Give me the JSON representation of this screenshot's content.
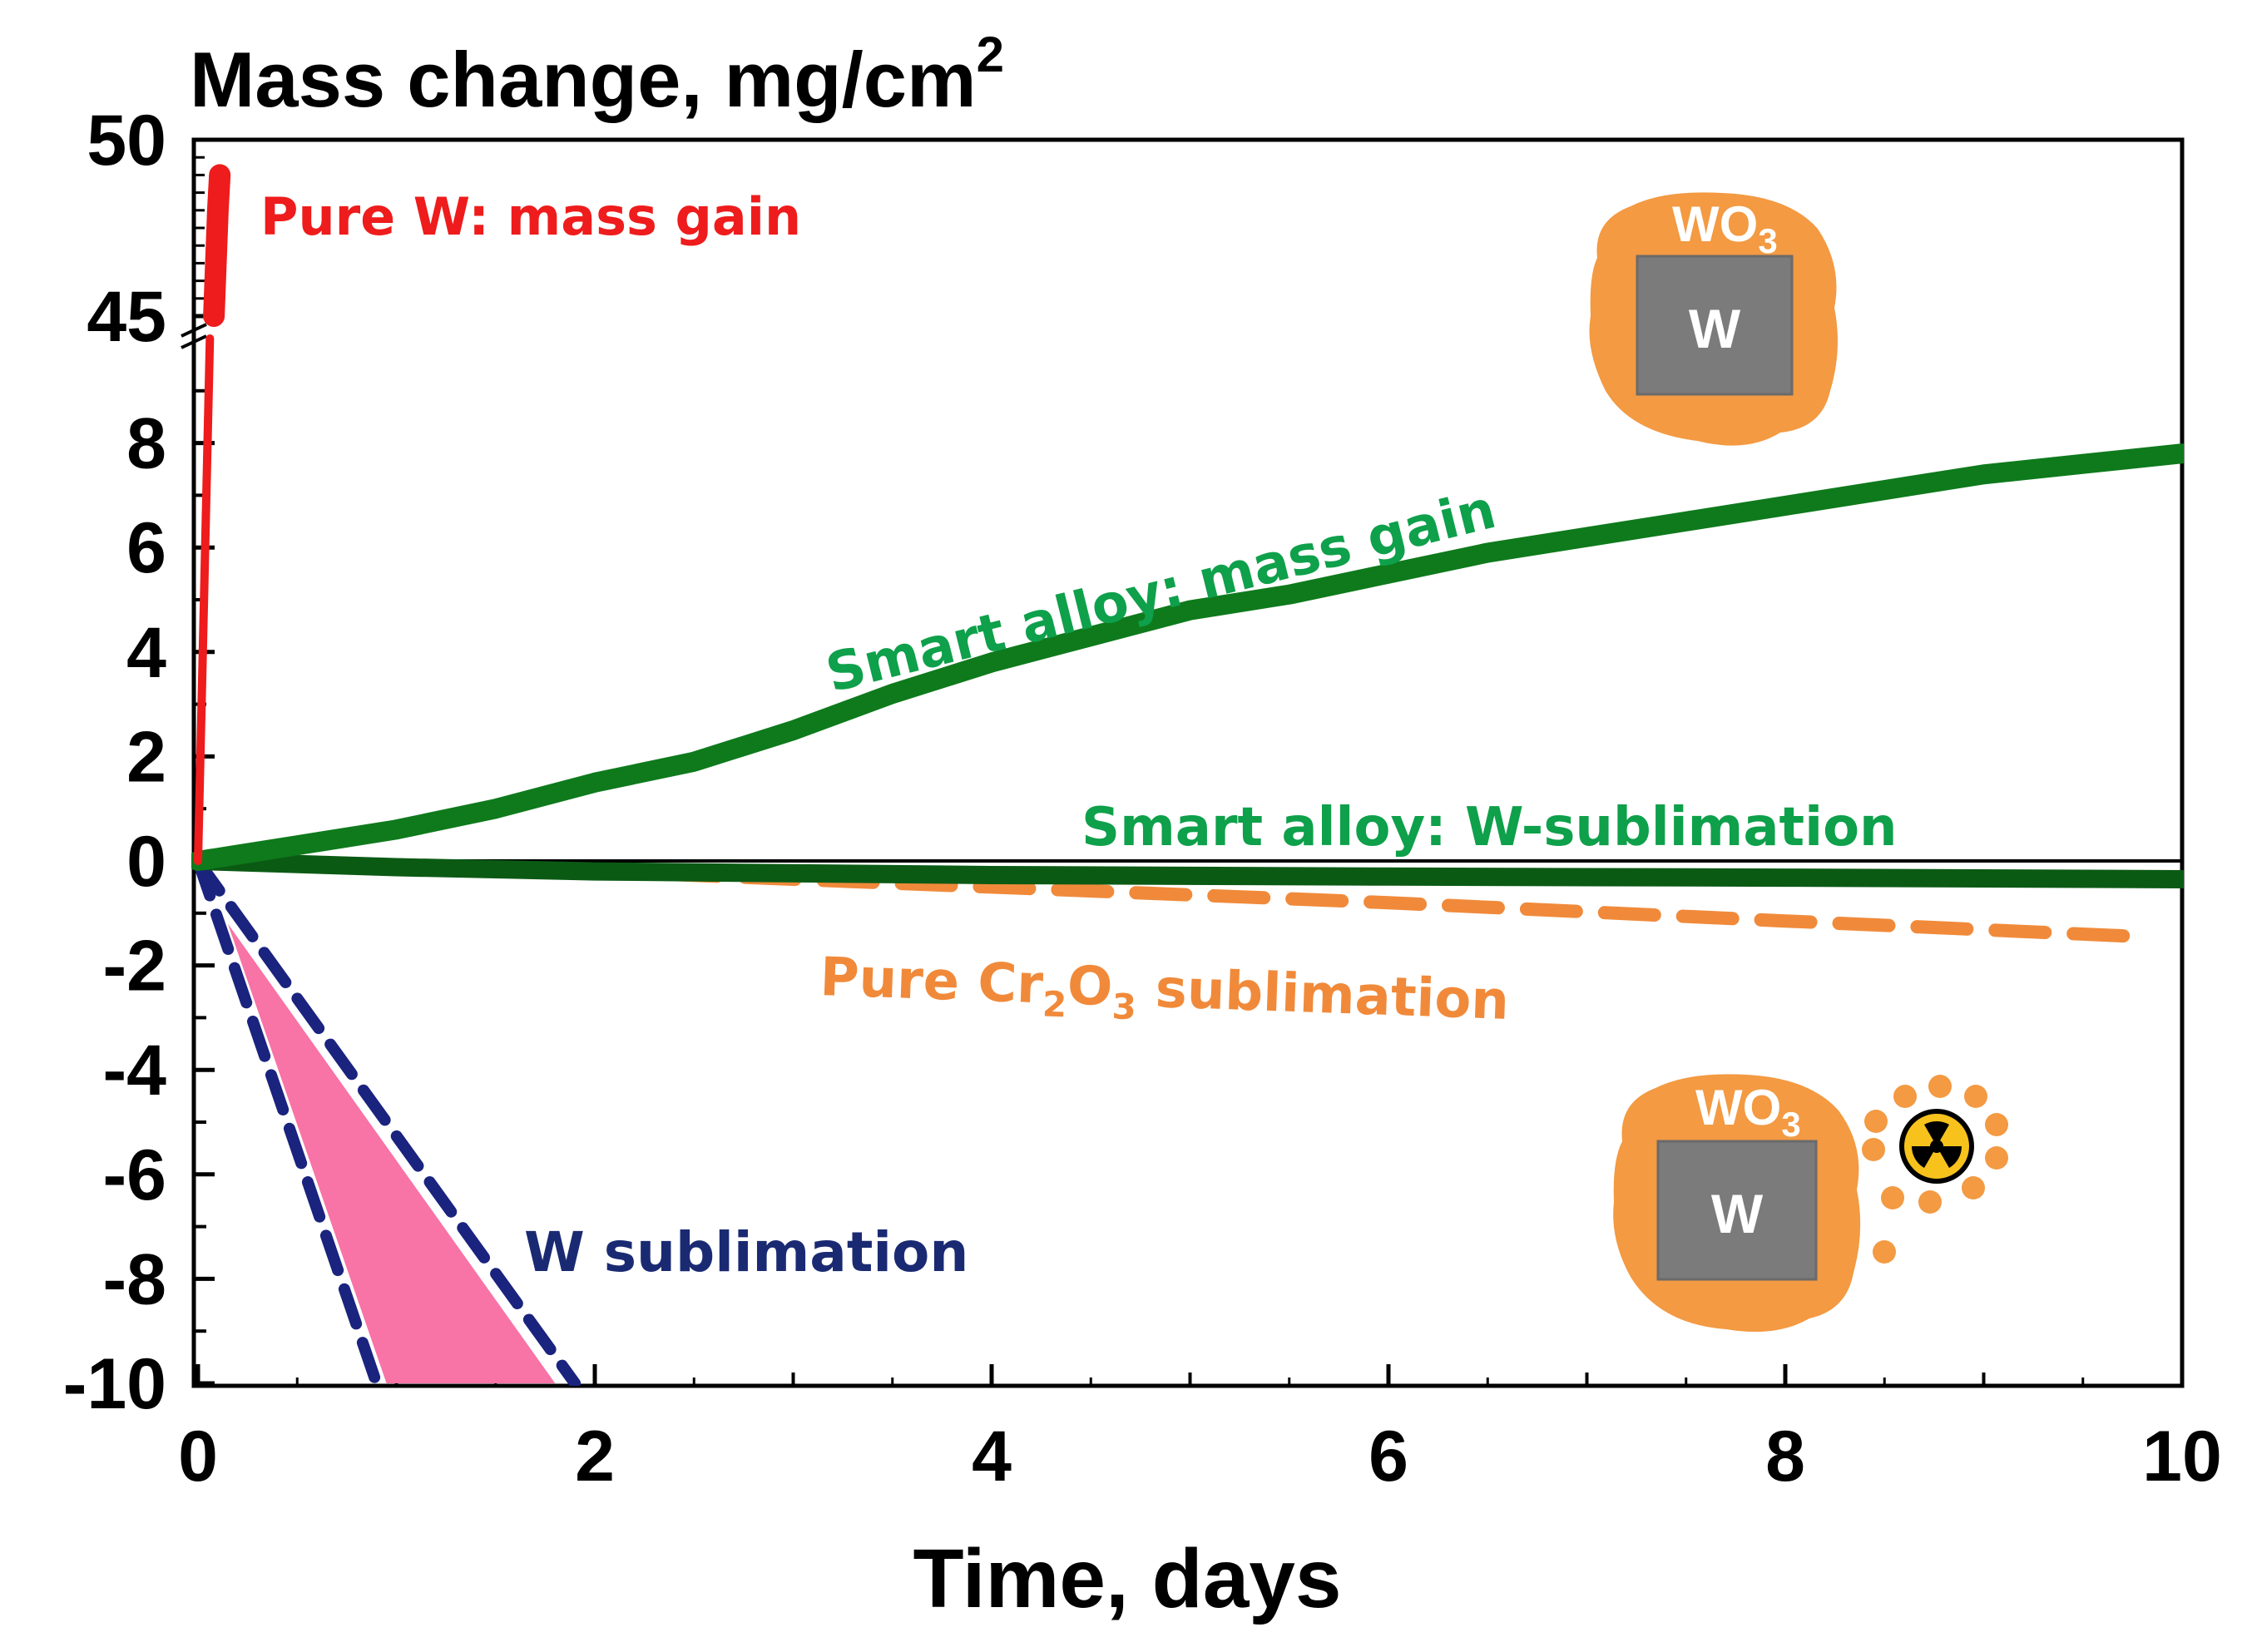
{
  "colors": {
    "pure_w": "#ee1c1c",
    "smart_gain": "#0e7a1c",
    "smart_sub": "#0b5a14",
    "cr2o3": "#f08a3a",
    "w_sub": "#1a237e",
    "w_sub_fill": "#f873a6",
    "label_green": "#0ea04a",
    "label_orange": "#f08a3a",
    "label_blue": "#1a2a72",
    "label_red": "#ee1c1c",
    "inset_orange": "#f39a42",
    "inset_gray": "#7b7b7b",
    "axis": "#000000"
  },
  "chart_data": {
    "type": "line",
    "title": "Mass change, mg/cm",
    "title_sup": "2",
    "xlabel": "Time, days",
    "ylabel": "Mass change, mg/cm²",
    "xlim": [
      0,
      10
    ],
    "ylim_lower": [
      -10,
      10
    ],
    "ylim_upper": [
      45,
      50
    ],
    "x_ticks": [
      "0",
      "2",
      "4",
      "6",
      "8",
      "10"
    ],
    "x_tick_values": [
      0,
      2,
      4,
      6,
      8,
      10
    ],
    "y_ticks_lower": [
      "-10",
      "-8",
      "-6",
      "-4",
      "-2",
      "0",
      "2",
      "4",
      "6",
      "8"
    ],
    "y_tick_values_lower": [
      -10,
      -8,
      -6,
      -4,
      -2,
      0,
      2,
      4,
      6,
      8
    ],
    "y_ticks_upper": [
      "45",
      "50"
    ],
    "y_tick_values_upper": [
      45,
      50
    ],
    "series": [
      {
        "name": "Pure W: mass gain",
        "style": "solid",
        "segments": [
          {
            "x": [
              0,
              0.03,
              0.06
            ],
            "y": [
              0,
              5,
              10
            ]
          },
          {
            "x": [
              0.08,
              0.09,
              0.1,
              0.11
            ],
            "y": [
              45,
              46.5,
              48,
              49
            ]
          }
        ]
      },
      {
        "name": "Smart alloy: mass gain",
        "style": "solid",
        "x": [
          0,
          0.5,
          1,
          1.5,
          2,
          2.5,
          3,
          3.5,
          4,
          4.5,
          5,
          5.5,
          6,
          6.5,
          7,
          7.5,
          8,
          8.5,
          9,
          9.5,
          10
        ],
        "y": [
          0,
          0.3,
          0.6,
          1.0,
          1.5,
          1.9,
          2.5,
          3.2,
          3.8,
          4.3,
          4.8,
          5.1,
          5.5,
          5.9,
          6.2,
          6.5,
          6.8,
          7.1,
          7.4,
          7.6,
          7.8
        ]
      },
      {
        "name": "Smart alloy: W-sublimation",
        "style": "solid",
        "x": [
          0,
          1,
          2,
          4,
          6,
          8,
          10
        ],
        "y": [
          0,
          -0.12,
          -0.2,
          -0.27,
          -0.3,
          -0.32,
          -0.35
        ]
      },
      {
        "name": "Pure Cr2O3 sublimation",
        "style": "dashed",
        "x": [
          0,
          2,
          4,
          6,
          8,
          9.8
        ],
        "y": [
          0,
          -0.2,
          -0.5,
          -0.8,
          -1.15,
          -1.45
        ]
      },
      {
        "name": "W sublimation",
        "style": "dashed-band",
        "lower": {
          "x": [
            0,
            0.9
          ],
          "y": [
            0,
            -10
          ]
        },
        "upper": {
          "x": [
            0,
            1.9
          ],
          "y": [
            0,
            -10
          ]
        },
        "fill": {
          "x": [
            0.15,
            0.95,
            1.8
          ],
          "y": [
            -1.2,
            -10,
            -10
          ]
        }
      }
    ],
    "annotations": [
      {
        "text": "Pure W: mass gain",
        "color": "red"
      },
      {
        "text": "Smart alloy: mass gain",
        "color": "green"
      },
      {
        "text": "Smart alloy: W-sublimation",
        "color": "green"
      },
      {
        "text": "Pure Cr2O3 sublimation",
        "color": "orange"
      },
      {
        "text": "W sublimation",
        "color": "blue"
      }
    ]
  },
  "labels": {
    "pure_w": "Pure W: mass gain",
    "smart_gain": "Smart alloy: mass gain",
    "smart_sub": "Smart alloy: W-sublimation",
    "cr_pre": "Pure Cr",
    "cr_sub1": "2",
    "cr_mid": "O",
    "cr_sub2": "3",
    "cr_post": " sublimation",
    "w_sub": "W sublimation"
  },
  "insets": {
    "top": {
      "oxide": "WO",
      "oxide_sub": "3",
      "metal": "W"
    },
    "bottom": {
      "oxide": "WO",
      "oxide_sub": "3",
      "metal": "W",
      "icon": "radiation-icon"
    }
  }
}
